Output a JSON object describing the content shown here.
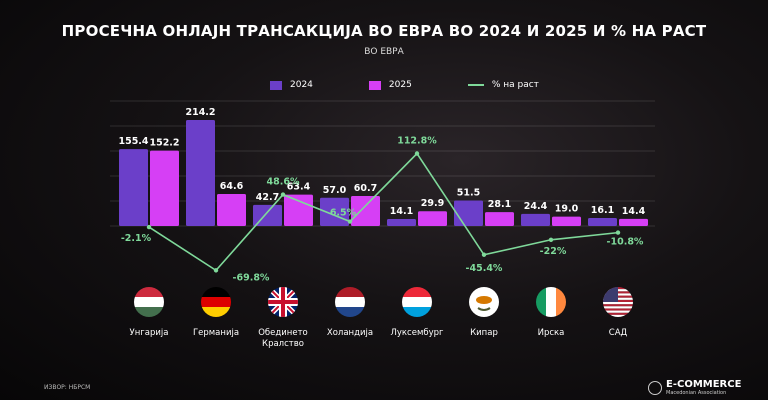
{
  "chart_data": {
    "type": "bar",
    "title": "ПРОСЕЧНА ОНЛАЈН ТРАНСАКЦИЈА ВО ЕВРА ВО 2024 И 2025 И % НА РАСТ",
    "subtitle": "ВО ЕВРА",
    "categories": [
      "Унгарија",
      "Германија",
      "Обединето Кралство",
      "Холандија",
      "Луксембург",
      "Кипар",
      "Ирска",
      "САД"
    ],
    "flags": [
      "hungary",
      "germany",
      "united-kingdom",
      "netherlands",
      "luxembourg",
      "cyprus",
      "ireland",
      "usa"
    ],
    "series": [
      {
        "name": "2024",
        "color": "#6b3fc9",
        "values": [
          155.4,
          214.2,
          42.7,
          57.0,
          14.1,
          51.5,
          24.4,
          16.1
        ]
      },
      {
        "name": "2025",
        "color": "#d63ff5",
        "values": [
          152.2,
          64.6,
          63.4,
          60.7,
          29.9,
          28.1,
          19.0,
          14.4
        ]
      },
      {
        "name": "% на раст",
        "type": "line",
        "color": "#7fd99a",
        "values": [
          -2.1,
          -69.8,
          48.6,
          6.5,
          112.8,
          -45.4,
          -22,
          -10.8
        ],
        "labels": [
          "-2.1%",
          "-69.8%",
          "48.6%",
          "6.5%",
          "112.8%",
          "-45.4%",
          "-22%",
          "-10.8%"
        ]
      }
    ],
    "legend": "top-center",
    "grid": true
  },
  "source": "ИЗВОР: НБРСМ",
  "logo": {
    "name": "E-COMMERCE",
    "sub": "Macedonian Association"
  }
}
